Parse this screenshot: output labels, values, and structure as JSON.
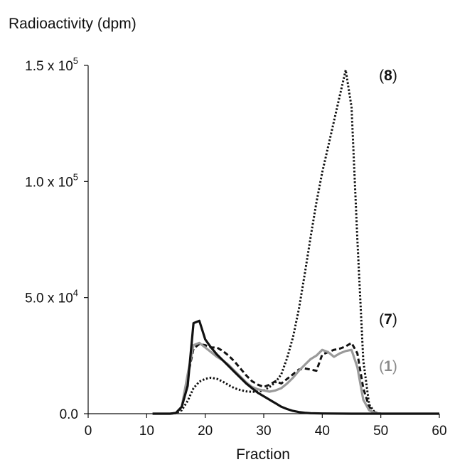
{
  "chart_data": {
    "type": "line",
    "title": "",
    "ylabel": "Radioactivity (dpm)",
    "xlabel": "Fraction",
    "xlim": [
      0,
      60
    ],
    "ylim": [
      0,
      150000
    ],
    "grid": false,
    "x_ticks": [
      0,
      10,
      20,
      30,
      40,
      50,
      60
    ],
    "y_ticks": [
      {
        "value": 0,
        "mantissa": "0.0",
        "exponent": ""
      },
      {
        "value": 50000,
        "mantissa": "5.0 x 10",
        "exponent": "4"
      },
      {
        "value": 100000,
        "mantissa": "1.0 x 10",
        "exponent": "5"
      },
      {
        "value": 150000,
        "mantissa": "1.5 x 10",
        "exponent": "5"
      }
    ],
    "series": [
      {
        "name": "(8)",
        "style": "dotted",
        "color": "#111111",
        "label_color": "#111111",
        "x": [
          11,
          14,
          15,
          16,
          17,
          18,
          19,
          20,
          21,
          22,
          23,
          24,
          25,
          26,
          27,
          28,
          29,
          30,
          31,
          32,
          33,
          34,
          35,
          36,
          37,
          38,
          39,
          40,
          41,
          42,
          43,
          44,
          45,
          46,
          47,
          48,
          49,
          50,
          55,
          60
        ],
        "y": [
          0,
          0,
          200,
          1500,
          5500,
          11000,
          13800,
          15000,
          15500,
          15000,
          13800,
          12300,
          11000,
          10200,
          9600,
          9400,
          9500,
          10000,
          11500,
          13500,
          17000,
          24000,
          33000,
          45000,
          60000,
          76000,
          91000,
          104000,
          115000,
          126000,
          137000,
          148000,
          132000,
          75000,
          23000,
          4000,
          500,
          0,
          0,
          0
        ]
      },
      {
        "name": "(7)",
        "style": "dashed",
        "color": "#111111",
        "label_color": "#111111",
        "x": [
          11,
          14,
          15,
          16,
          17,
          18,
          19,
          20,
          21,
          22,
          23,
          24,
          25,
          26,
          27,
          28,
          29,
          30,
          31,
          32,
          33,
          34,
          35,
          36,
          37,
          38,
          39,
          40,
          41,
          42,
          43,
          44,
          45,
          46,
          47,
          48,
          49,
          50,
          55,
          60
        ],
        "y": [
          0,
          0,
          300,
          3000,
          16000,
          28000,
          30000,
          29500,
          28500,
          28500,
          27000,
          25000,
          22500,
          19500,
          16500,
          14000,
          12500,
          11500,
          12500,
          14000,
          13000,
          15000,
          17000,
          19000,
          19500,
          19000,
          18500,
          25500,
          26500,
          27500,
          28000,
          29000,
          30500,
          26000,
          11000,
          3000,
          500,
          0,
          0,
          0
        ]
      },
      {
        "name": "(1)",
        "style": "solid",
        "color": "#9a9a9a",
        "label_color": "#8a8a8a",
        "x": [
          11,
          14,
          15,
          16,
          17,
          18,
          19,
          20,
          21,
          22,
          23,
          24,
          25,
          26,
          27,
          28,
          29,
          30,
          31,
          32,
          33,
          34,
          35,
          36,
          37,
          38,
          39,
          40,
          41,
          42,
          43,
          44,
          45,
          46,
          47,
          48,
          49,
          50,
          55,
          60
        ],
        "y": [
          0,
          0,
          300,
          3000,
          17000,
          29500,
          30500,
          28500,
          26500,
          24500,
          23000,
          21000,
          18500,
          16000,
          13500,
          11500,
          10500,
          10000,
          9500,
          10000,
          11000,
          13000,
          15500,
          18500,
          21000,
          23500,
          25000,
          27500,
          26500,
          24500,
          26000,
          27000,
          27500,
          20000,
          6000,
          1500,
          300,
          0,
          0,
          0
        ]
      },
      {
        "name": "",
        "style": "solid",
        "color": "#111111",
        "label_color": "#111111",
        "x": [
          11,
          14,
          15,
          16,
          17,
          18,
          19,
          20,
          21,
          22,
          23,
          24,
          25,
          26,
          27,
          28,
          29,
          30,
          31,
          32,
          33,
          34,
          35,
          36,
          37,
          38,
          40,
          45,
          50,
          55,
          60
        ],
        "y": [
          0,
          0,
          300,
          3000,
          12000,
          39000,
          40000,
          32000,
          28500,
          25500,
          23000,
          20500,
          18000,
          15500,
          13000,
          11000,
          9000,
          7500,
          6000,
          4500,
          3000,
          2000,
          1200,
          700,
          400,
          200,
          100,
          0,
          0,
          0,
          0
        ]
      }
    ]
  }
}
